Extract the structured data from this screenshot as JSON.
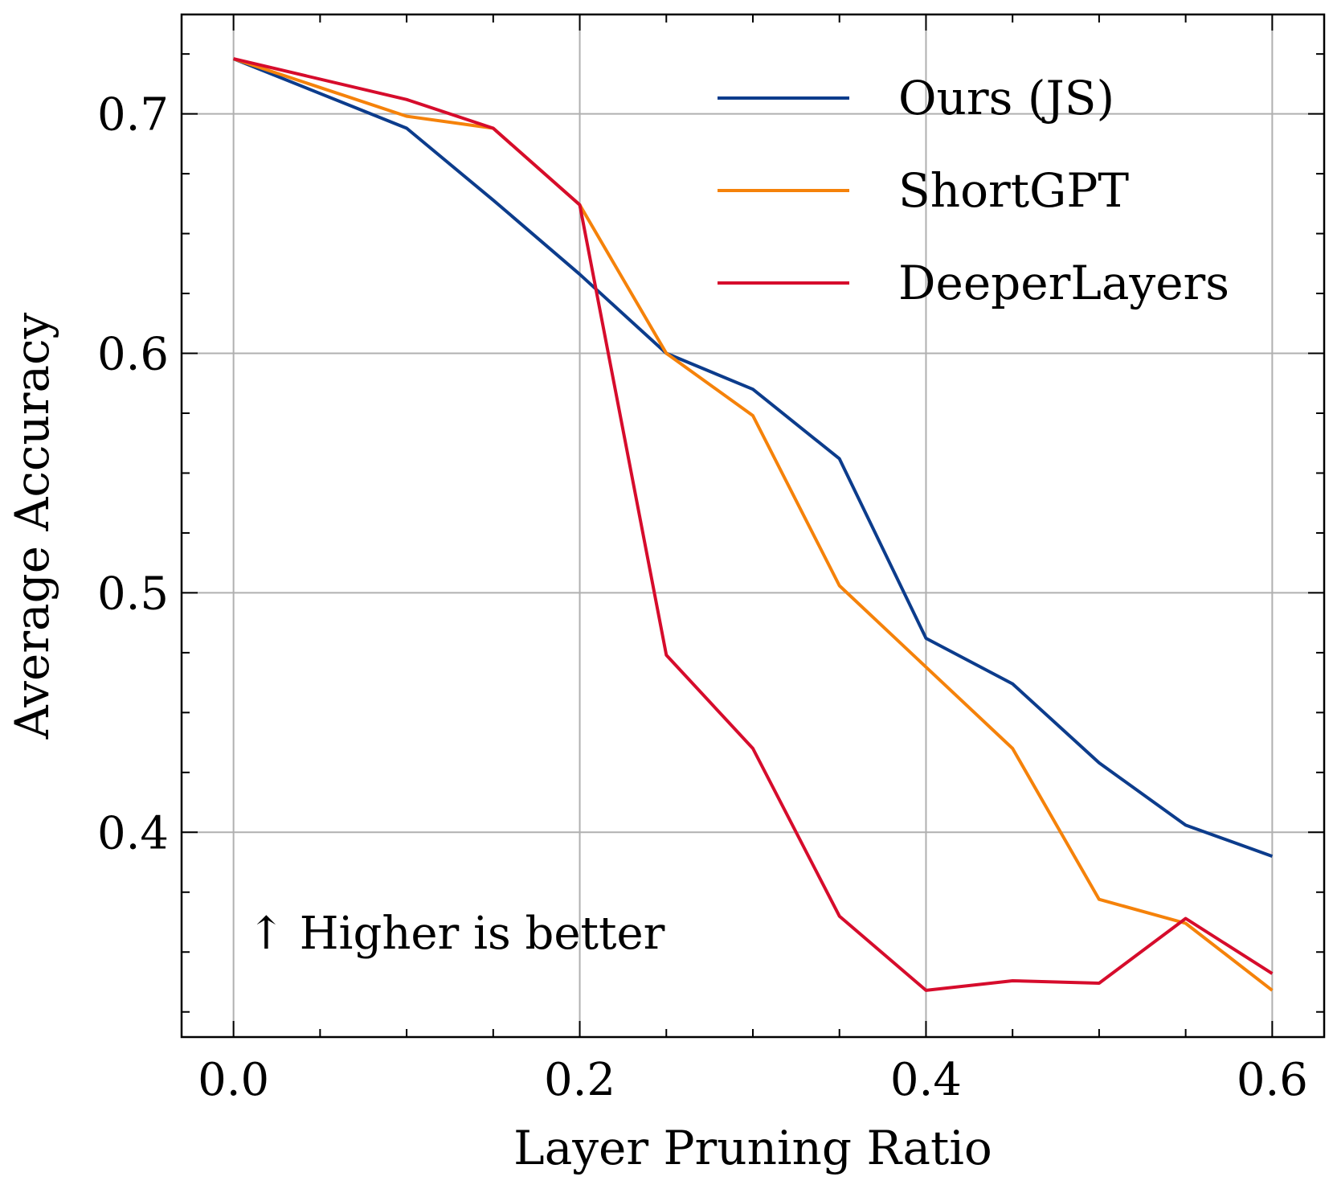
{
  "chart_data": {
    "type": "line",
    "title": "",
    "xlabel": "Layer Pruning Ratio",
    "ylabel": "Average Accuracy",
    "xlim": [
      -0.03,
      0.63
    ],
    "ylim": [
      0.3145,
      0.7415
    ],
    "x_ticks": [
      0.0,
      0.2,
      0.4,
      0.6
    ],
    "x_tick_labels": [
      "0.0",
      "0.2",
      "0.4",
      "0.6"
    ],
    "y_ticks": [
      0.4,
      0.5,
      0.6,
      0.7
    ],
    "y_tick_labels": [
      "0.4",
      "0.5",
      "0.6",
      "0.7"
    ],
    "x_minor_step": 0.05,
    "y_minor_step": 0.025,
    "grid": true,
    "legend_position": "top-right",
    "annotation": "↑ Higher is better",
    "x": [
      0.0,
      0.1,
      0.15,
      0.2,
      0.25,
      0.3,
      0.35,
      0.4,
      0.45,
      0.5,
      0.55,
      0.6
    ],
    "series": [
      {
        "name": "Ours (JS)",
        "color": "#0c3c8c",
        "values": [
          0.723,
          0.694,
          0.664,
          0.633,
          0.6,
          0.585,
          0.556,
          0.481,
          0.462,
          0.429,
          0.403,
          0.39
        ]
      },
      {
        "name": "ShortGPT",
        "color": "#f5820a",
        "values": [
          0.723,
          0.699,
          0.694,
          0.662,
          0.6,
          0.574,
          0.503,
          0.469,
          0.435,
          0.372,
          0.362,
          0.334
        ]
      },
      {
        "name": "DeeperLayers",
        "color": "#d60c2c",
        "values": [
          0.723,
          0.706,
          0.694,
          0.662,
          0.474,
          0.435,
          0.365,
          0.334,
          0.338,
          0.337,
          0.364,
          0.341
        ]
      }
    ]
  }
}
